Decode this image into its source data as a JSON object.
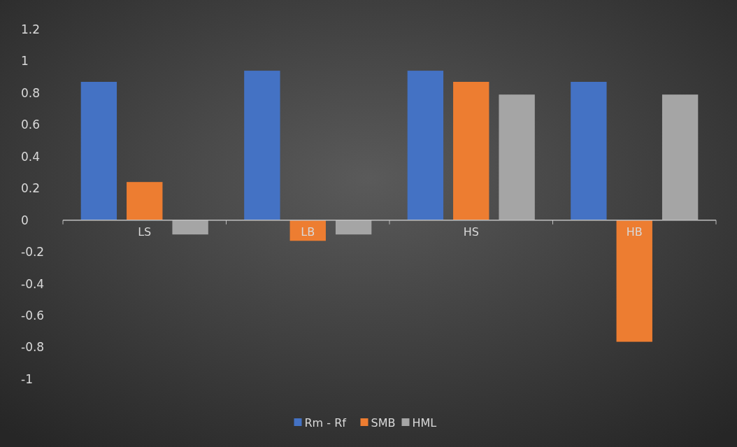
{
  "chart_data": {
    "type": "bar",
    "categories": [
      "LS",
      "LB",
      "HS",
      "HB"
    ],
    "series": [
      {
        "name": "Rm - Rf",
        "color": "#4472c4",
        "values": [
          0.87,
          0.94,
          0.94,
          0.87
        ]
      },
      {
        "name": "SMB",
        "color": "#ed7d31",
        "values": [
          0.24,
          -0.13,
          0.87,
          -0.765
        ]
      },
      {
        "name": "HML",
        "color": "#a5a5a5",
        "values": [
          -0.09,
          -0.09,
          0.79,
          0.79
        ]
      }
    ],
    "ylim": [
      -1,
      1.2
    ],
    "yticks": [
      -1,
      -0.8,
      -0.6,
      -0.4,
      -0.2,
      0,
      0.2,
      0.4,
      0.6,
      0.8,
      1,
      1.2
    ],
    "grid": false,
    "legend": "bottom"
  }
}
